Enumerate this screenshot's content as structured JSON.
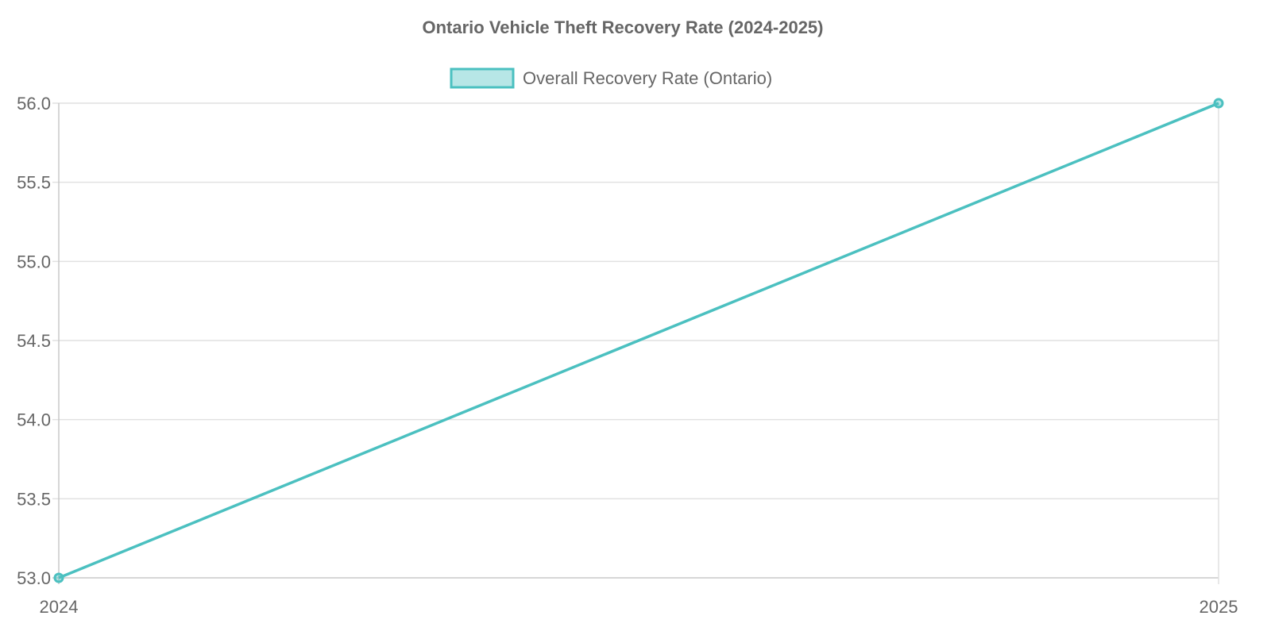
{
  "chart_data": {
    "type": "line",
    "title": "Ontario Vehicle Theft Recovery Rate (2024-2025)",
    "categories": [
      "2024",
      "2025"
    ],
    "series": [
      {
        "name": "Overall Recovery Rate (Ontario)",
        "values": [
          53.0,
          56.0
        ],
        "color": "#4bc0c0",
        "fill": "rgba(75,192,192,0.4)"
      }
    ],
    "ylim": [
      53.0,
      56.0
    ],
    "yticks": [
      "53.0",
      "53.5",
      "54.0",
      "54.5",
      "55.0",
      "55.5",
      "56.0"
    ],
    "grid": true,
    "legend": "top"
  }
}
